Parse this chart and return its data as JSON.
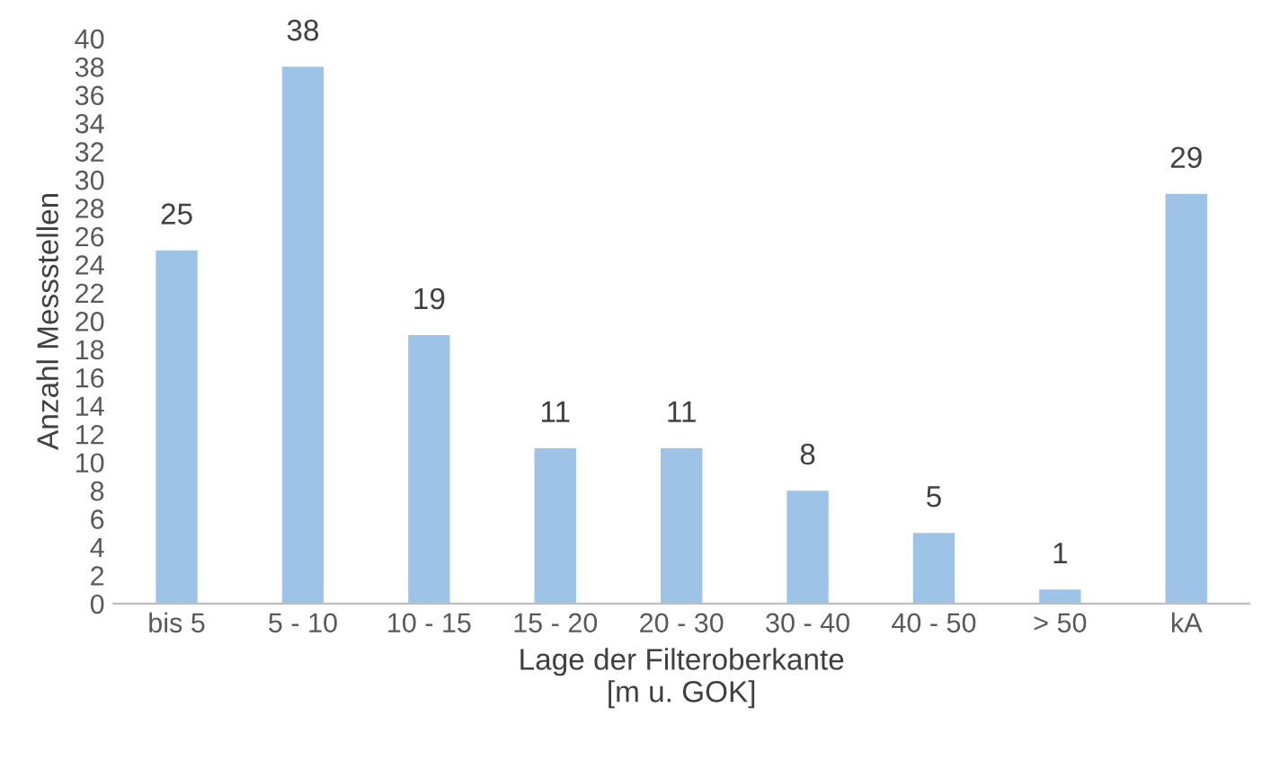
{
  "chart_data": {
    "type": "bar",
    "xlabel": "Lage der Filteroberkante\n[m u. GOK]",
    "ylabel": "Anzahl Messstellen",
    "categories": [
      "bis 5",
      "5 - 10",
      "10 - 15",
      "15 - 20",
      "20 - 30",
      "30 - 40",
      "40 - 50",
      "> 50",
      "kA"
    ],
    "values": [
      25,
      38,
      19,
      11,
      11,
      8,
      5,
      1,
      29
    ],
    "color": "#9dc3e6",
    "ylim": [
      0,
      40
    ],
    "yticks": [
      0,
      2,
      4,
      6,
      8,
      10,
      12,
      14,
      16,
      18,
      20,
      22,
      24,
      26,
      28,
      30,
      32,
      34,
      36,
      38,
      40
    ],
    "data_labels": true,
    "grid": false,
    "legend": false
  }
}
